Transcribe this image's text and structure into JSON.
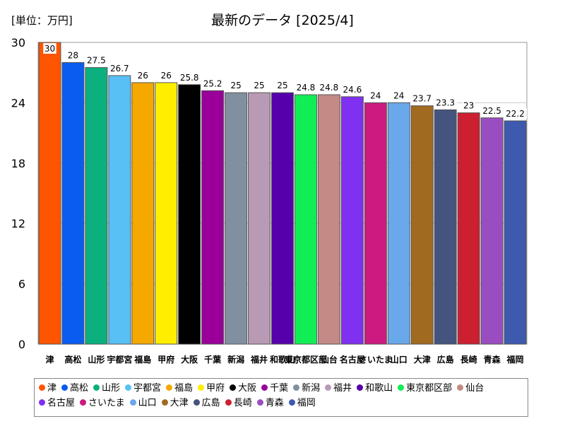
{
  "header": {
    "unit": "[単位：万円]",
    "title": "最新のデータ [2025/4]"
  },
  "chart_data": {
    "type": "bar",
    "categories": [
      "津",
      "高松",
      "山形",
      "宇都宮",
      "福島",
      "甲府",
      "大阪",
      "千葉",
      "新潟",
      "福井",
      "和歌山",
      "東京都区部",
      "仙台",
      "名古屋",
      "さいたま",
      "山口",
      "大津",
      "広島",
      "長崎",
      "青森",
      "福岡"
    ],
    "values": [
      30,
      28,
      27.5,
      26.7,
      26,
      26,
      25.8,
      25.2,
      25,
      25,
      25,
      24.8,
      24.8,
      24.6,
      24,
      24,
      23.7,
      23.3,
      23,
      22.5,
      22.2
    ],
    "value_labels": [
      "30",
      "28",
      "27.5",
      "26.7",
      "26",
      "26",
      "25.8",
      "25.2",
      "25",
      "25",
      "25",
      "24.8",
      "24.8",
      "24.6",
      "24",
      "24",
      "23.7",
      "23.3",
      "23",
      "22.5",
      "22.2"
    ],
    "colors": [
      "#ff5500",
      "#0a5cf0",
      "#0bb07e",
      "#58c0f5",
      "#f5a800",
      "#ffee00",
      "#000000",
      "#9a0099",
      "#8090a0",
      "#b89ab5",
      "#5500aa",
      "#11ee55",
      "#c48a85",
      "#8030f0",
      "#cc1a80",
      "#6aa8ec",
      "#a06a20",
      "#45547e",
      "#cc2030",
      "#9a4dc0",
      "#3d5aae"
    ],
    "yticks": [
      "0",
      "6",
      "12",
      "18",
      "24",
      "30"
    ],
    "ylim": [
      0,
      30
    ],
    "legend_labels": [
      "津",
      "高松",
      "山形",
      "宇都宮",
      "福島",
      "甲府",
      "大阪",
      "千葉",
      "新潟",
      "福井",
      "和歌山",
      "東京都区部",
      "仙台",
      "名古屋",
      "さいたま",
      "山口",
      "大津",
      "広島",
      "長崎",
      "青森",
      "福岡"
    ],
    "legend_position": "bottom",
    "grid": true
  }
}
